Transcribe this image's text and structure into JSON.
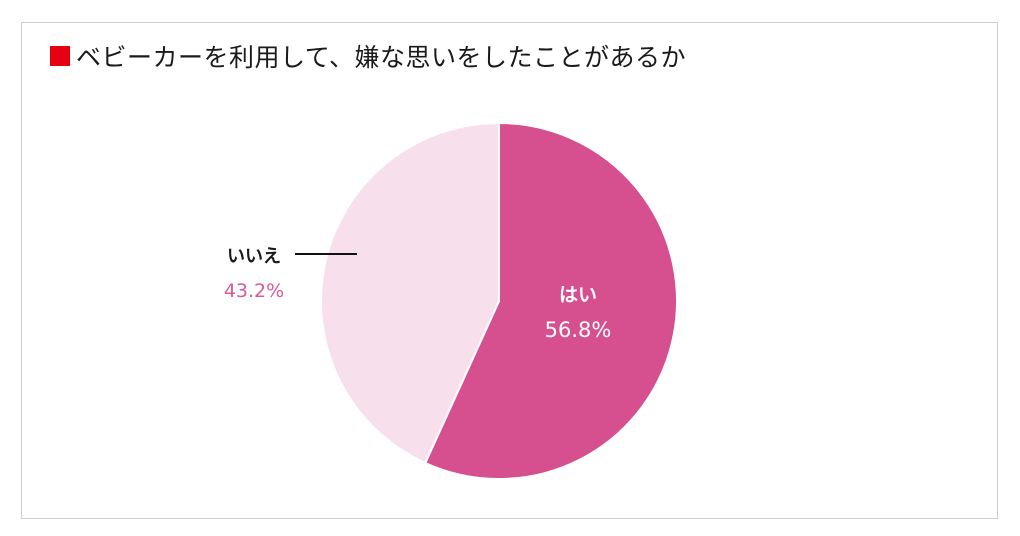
{
  "colors": {
    "title_marker": "#e60012",
    "slice_yes": "#d64f8e",
    "slice_no": "#f7dfec",
    "label_no_percent": "#dd5a98",
    "label_yes": "#ffffff"
  },
  "chart_data": {
    "type": "pie",
    "title": "ベビーカーを利用して、嫌な思いをしたことがあるか",
    "slices": [
      {
        "label": "はい",
        "percent_label": "56.8%",
        "value": 56.8
      },
      {
        "label": "いいえ",
        "percent_label": "43.2%",
        "value": 43.2
      }
    ],
    "start_angle_deg": 0,
    "direction": "clockwise"
  }
}
